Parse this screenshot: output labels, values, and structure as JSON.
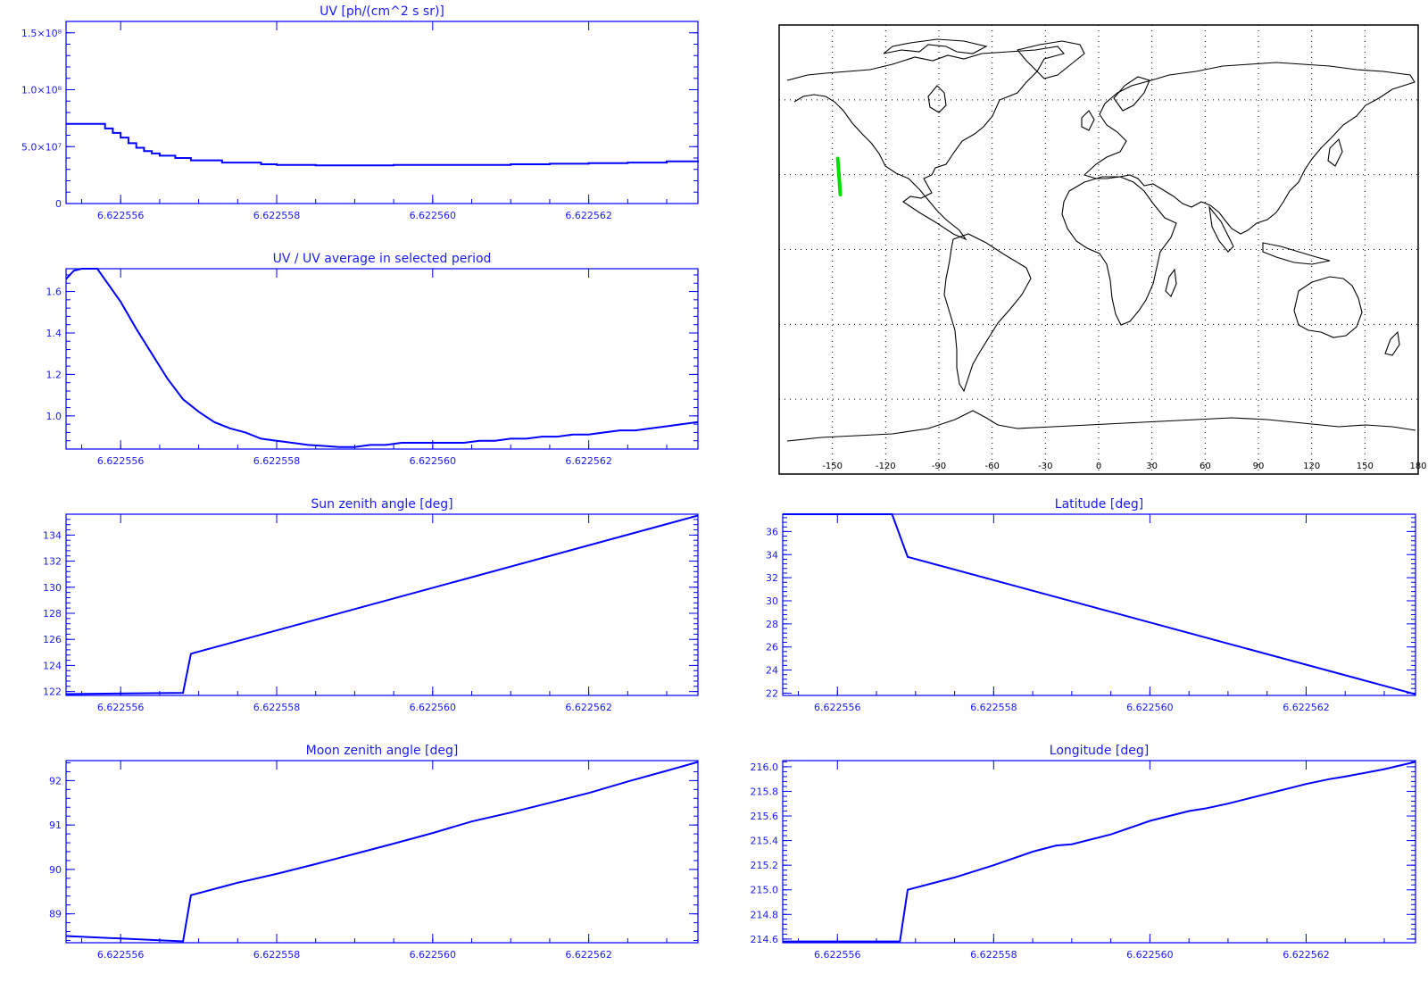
{
  "colors": {
    "plot": "#0000ff",
    "text": "#1a1aff",
    "track": "#00dd00",
    "map": "#000000"
  },
  "map": {
    "type": "map",
    "lon_ticks": [
      "-150",
      "-120",
      "-90",
      "-60",
      "-30",
      "0",
      "30",
      "60",
      "90",
      "120",
      "150",
      "180"
    ],
    "grid": "dotted",
    "track": [
      [
        -147,
        36.5
      ],
      [
        -146.2,
        29
      ],
      [
        -145.5,
        22
      ]
    ]
  },
  "chart_data": [
    {
      "type": "line",
      "title": "UV [ph/(cm^2 s sr)]",
      "xlabel": "",
      "ylabel": "",
      "xlim": [
        6.6225553,
        6.6225634
      ],
      "ylim": [
        0,
        160000000.0
      ],
      "y_ticks": [
        {
          "v": 0,
          "label": "0"
        },
        {
          "v": 50000000.0,
          "label": "5.0×10⁷"
        },
        {
          "v": 100000000.0,
          "label": "1.0×10⁸"
        },
        {
          "v": 150000000.0,
          "label": "1.5×10⁸"
        }
      ],
      "x_ticks": [
        "6.622556",
        "6.622558",
        "6.622560",
        "6.622562"
      ],
      "step": true,
      "x": [
        6.6225553,
        6.6225557,
        6.6225558,
        6.6225559,
        6.622556,
        6.6225561,
        6.6225562,
        6.6225563,
        6.6225564,
        6.6225565,
        6.6225567,
        6.6225569,
        6.6225573,
        6.6225578,
        6.622558,
        6.6225585,
        6.622559,
        6.6225595,
        6.62256,
        6.6225605,
        6.622561,
        6.6225615,
        6.622562,
        6.6225625,
        6.622563,
        6.6225634
      ],
      "series": [
        {
          "values": [
            70000000.0,
            70000000.0,
            66000000.0,
            62000000.0,
            58000000.0,
            53000000.0,
            49000000.0,
            46000000.0,
            44000000.0,
            42000000.0,
            40000000.0,
            38000000.0,
            36000000.0,
            34500000.0,
            34000000.0,
            33500000.0,
            33500000.0,
            34000000.0,
            34000000.0,
            34000000.0,
            34500000.0,
            35000000.0,
            35500000.0,
            36000000.0,
            37000000.0,
            38000000.0
          ]
        }
      ]
    },
    {
      "type": "line",
      "title": "UV / UV average in selected period",
      "xlabel": "",
      "ylabel": "",
      "xlim": [
        6.6225553,
        6.6225634
      ],
      "ylim": [
        0.84,
        1.71
      ],
      "y_ticks": [
        {
          "v": 1.0,
          "label": "1.0"
        },
        {
          "v": 1.2,
          "label": "1.2"
        },
        {
          "v": 1.4,
          "label": "1.4"
        },
        {
          "v": 1.6,
          "label": "1.6"
        }
      ],
      "x_ticks": [
        "6.622556",
        "6.622558",
        "6.622560",
        "6.622562"
      ],
      "x": [
        6.6225553,
        6.6225554,
        6.6225555,
        6.6225557,
        6.622556,
        6.6225562,
        6.6225564,
        6.6225566,
        6.6225568,
        6.622557,
        6.6225572,
        6.6225574,
        6.6225576,
        6.6225578,
        6.622558,
        6.6225582,
        6.6225584,
        6.6225586,
        6.6225588,
        6.622559,
        6.6225592,
        6.6225594,
        6.6225596,
        6.6225598,
        6.62256,
        6.6225602,
        6.6225604,
        6.6225606,
        6.6225608,
        6.622561,
        6.6225612,
        6.6225614,
        6.6225616,
        6.6225618,
        6.622562,
        6.6225622,
        6.6225624,
        6.6225626,
        6.6225628,
        6.622563,
        6.6225632,
        6.6225634
      ],
      "series": [
        {
          "values": [
            1.66,
            1.7,
            1.71,
            1.71,
            1.55,
            1.42,
            1.3,
            1.18,
            1.08,
            1.02,
            0.97,
            0.94,
            0.92,
            0.89,
            0.88,
            0.87,
            0.86,
            0.855,
            0.85,
            0.85,
            0.86,
            0.86,
            0.87,
            0.87,
            0.87,
            0.87,
            0.87,
            0.88,
            0.88,
            0.89,
            0.89,
            0.9,
            0.9,
            0.91,
            0.91,
            0.92,
            0.93,
            0.93,
            0.94,
            0.95,
            0.96,
            0.97
          ]
        }
      ]
    },
    {
      "type": "line",
      "title": "Sun zenith angle [deg]",
      "xlabel": "",
      "ylabel": "",
      "xlim": [
        6.6225553,
        6.6225634
      ],
      "ylim": [
        121.7,
        135.6
      ],
      "y_ticks": [
        {
          "v": 122,
          "label": "122"
        },
        {
          "v": 124,
          "label": "124"
        },
        {
          "v": 126,
          "label": "126"
        },
        {
          "v": 128,
          "label": "128"
        },
        {
          "v": 130,
          "label": "130"
        },
        {
          "v": 132,
          "label": "132"
        },
        {
          "v": 134,
          "label": "134"
        }
      ],
      "x_ticks": [
        "6.622556",
        "6.622558",
        "6.622560",
        "6.622562"
      ],
      "x": [
        6.6225553,
        6.6225568,
        6.6225569,
        6.6225634
      ],
      "series": [
        {
          "values": [
            121.8,
            121.9,
            124.9,
            135.5
          ]
        }
      ]
    },
    {
      "type": "line",
      "title": "Latitude [deg]",
      "xlabel": "",
      "ylabel": "",
      "xlim": [
        6.6225553,
        6.6225634
      ],
      "ylim": [
        21.8,
        37.5
      ],
      "y_ticks": [
        {
          "v": 22,
          "label": "22"
        },
        {
          "v": 24,
          "label": "24"
        },
        {
          "v": 26,
          "label": "26"
        },
        {
          "v": 28,
          "label": "28"
        },
        {
          "v": 30,
          "label": "30"
        },
        {
          "v": 32,
          "label": "32"
        },
        {
          "v": 34,
          "label": "34"
        },
        {
          "v": 36,
          "label": "36"
        }
      ],
      "x_ticks": [
        "6.622556",
        "6.622558",
        "6.622560",
        "6.622562"
      ],
      "x": [
        6.6225553,
        6.6225567,
        6.6225569,
        6.6225634
      ],
      "series": [
        {
          "values": [
            37.5,
            37.5,
            33.8,
            21.9
          ]
        }
      ]
    },
    {
      "type": "line",
      "title": "Moon zenith angle [deg]",
      "xlabel": "",
      "ylabel": "",
      "xlim": [
        6.6225553,
        6.6225634
      ],
      "ylim": [
        88.35,
        92.45
      ],
      "y_ticks": [
        {
          "v": 89,
          "label": "89"
        },
        {
          "v": 90,
          "label": "90"
        },
        {
          "v": 91,
          "label": "91"
        },
        {
          "v": 92,
          "label": "92"
        }
      ],
      "x_ticks": [
        "6.622556",
        "6.622558",
        "6.622560",
        "6.622562"
      ],
      "x": [
        6.6225553,
        6.6225568,
        6.6225569,
        6.6225575,
        6.622558,
        6.6225585,
        6.622559,
        6.6225595,
        6.62256,
        6.6225605,
        6.622561,
        6.6225615,
        6.622562,
        6.6225625,
        6.622563,
        6.6225634
      ],
      "series": [
        {
          "values": [
            88.5,
            88.38,
            89.42,
            89.7,
            89.9,
            90.12,
            90.35,
            90.58,
            90.82,
            91.08,
            91.28,
            91.5,
            91.72,
            91.98,
            92.22,
            92.42
          ]
        }
      ]
    },
    {
      "type": "line",
      "title": "Longitude [deg]",
      "xlabel": "",
      "ylabel": "",
      "xlim": [
        6.6225553,
        6.6225634
      ],
      "ylim": [
        214.57,
        216.05
      ],
      "y_ticks": [
        {
          "v": 214.6,
          "label": "214.6"
        },
        {
          "v": 214.8,
          "label": "214.8"
        },
        {
          "v": 215.0,
          "label": "215.0"
        },
        {
          "v": 215.2,
          "label": "215.2"
        },
        {
          "v": 215.4,
          "label": "215.4"
        },
        {
          "v": 215.6,
          "label": "215.6"
        },
        {
          "v": 215.8,
          "label": "215.8"
        },
        {
          "v": 216.0,
          "label": "216.0"
        }
      ],
      "x_ticks": [
        "6.622556",
        "6.622558",
        "6.622560",
        "6.622562"
      ],
      "x": [
        6.6225553,
        6.6225568,
        6.6225569,
        6.6225575,
        6.622558,
        6.6225585,
        6.6225588,
        6.622559,
        6.6225595,
        6.62256,
        6.6225605,
        6.6225607,
        6.622561,
        6.6225615,
        6.622562,
        6.6225623,
        6.6225625,
        6.622563,
        6.6225634
      ],
      "series": [
        {
          "values": [
            214.58,
            214.58,
            215.0,
            215.1,
            215.2,
            215.31,
            215.36,
            215.37,
            215.45,
            215.56,
            215.64,
            215.66,
            215.7,
            215.78,
            215.86,
            215.9,
            215.92,
            215.98,
            216.04
          ]
        }
      ]
    }
  ]
}
